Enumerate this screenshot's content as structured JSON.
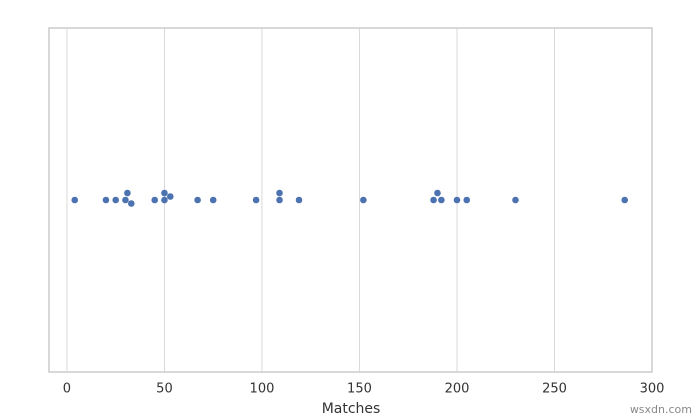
{
  "chart_data": {
    "type": "scatter",
    "x_label": "Matches",
    "x": [
      4,
      20,
      25,
      30,
      31,
      33,
      45,
      50,
      50,
      53,
      67,
      75,
      97,
      109,
      109,
      119,
      152,
      188,
      190,
      192,
      200,
      205,
      230,
      286
    ],
    "color": "#4c72b0",
    "xlim": [
      -9.2,
      300
    ],
    "xticks": [
      0,
      50,
      100,
      150,
      200,
      250,
      300
    ],
    "grid": true
  },
  "watermark": "wsxdn.com"
}
